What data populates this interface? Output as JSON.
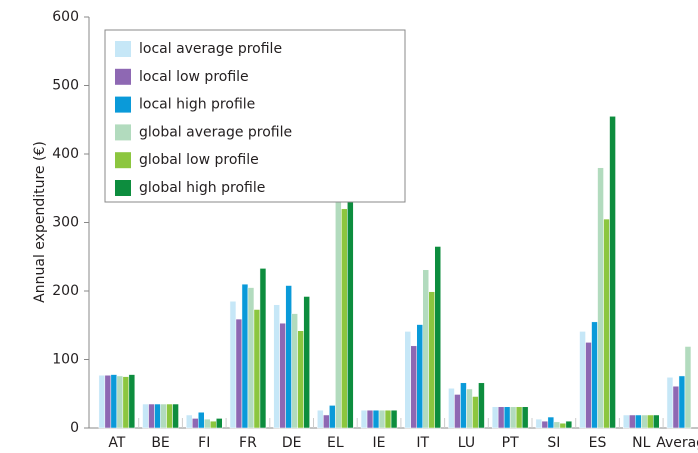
{
  "chart_data": {
    "type": "bar",
    "ylabel": "Annual expenditure (€)",
    "categories": [
      "AT",
      "BE",
      "FI",
      "FR",
      "DE",
      "EL",
      "IE",
      "IT",
      "LU",
      "PT",
      "SI",
      "ES",
      "NL",
      "Average"
    ],
    "series": [
      {
        "name": "local average profile",
        "color": "#c6e7f7",
        "values": [
          77,
          35,
          19,
          185,
          180,
          26,
          26,
          141,
          58,
          31,
          13,
          141,
          19,
          74
        ]
      },
      {
        "name": "local low profile",
        "color": "#8e68b3",
        "values": [
          77,
          35,
          14,
          159,
          153,
          19,
          26,
          120,
          49,
          31,
          10,
          125,
          19,
          61
        ]
      },
      {
        "name": "local high profile",
        "color": "#0a9ad9",
        "values": [
          78,
          35,
          23,
          210,
          208,
          33,
          26,
          151,
          66,
          31,
          16,
          155,
          19,
          76
        ]
      },
      {
        "name": "global average profile",
        "color": "#b2dbbe",
        "values": [
          76,
          35,
          13,
          205,
          167,
          423,
          26,
          231,
          57,
          31,
          9,
          380,
          19,
          119
        ]
      },
      {
        "name": "global low profile",
        "color": "#8cc63f",
        "values": [
          75,
          35,
          10,
          173,
          142,
          320,
          26,
          199,
          46,
          31,
          7,
          305,
          19,
          null
        ]
      },
      {
        "name": "global high profile",
        "color": "#0d8d3e",
        "values": [
          78,
          35,
          14,
          233,
          192,
          529,
          26,
          265,
          66,
          31,
          10,
          455,
          19,
          null
        ]
      }
    ],
    "ylim": [
      0,
      600
    ],
    "yticks": [
      0,
      100,
      200,
      300,
      400,
      500,
      600
    ],
    "grid": false,
    "legend": "upper left"
  }
}
